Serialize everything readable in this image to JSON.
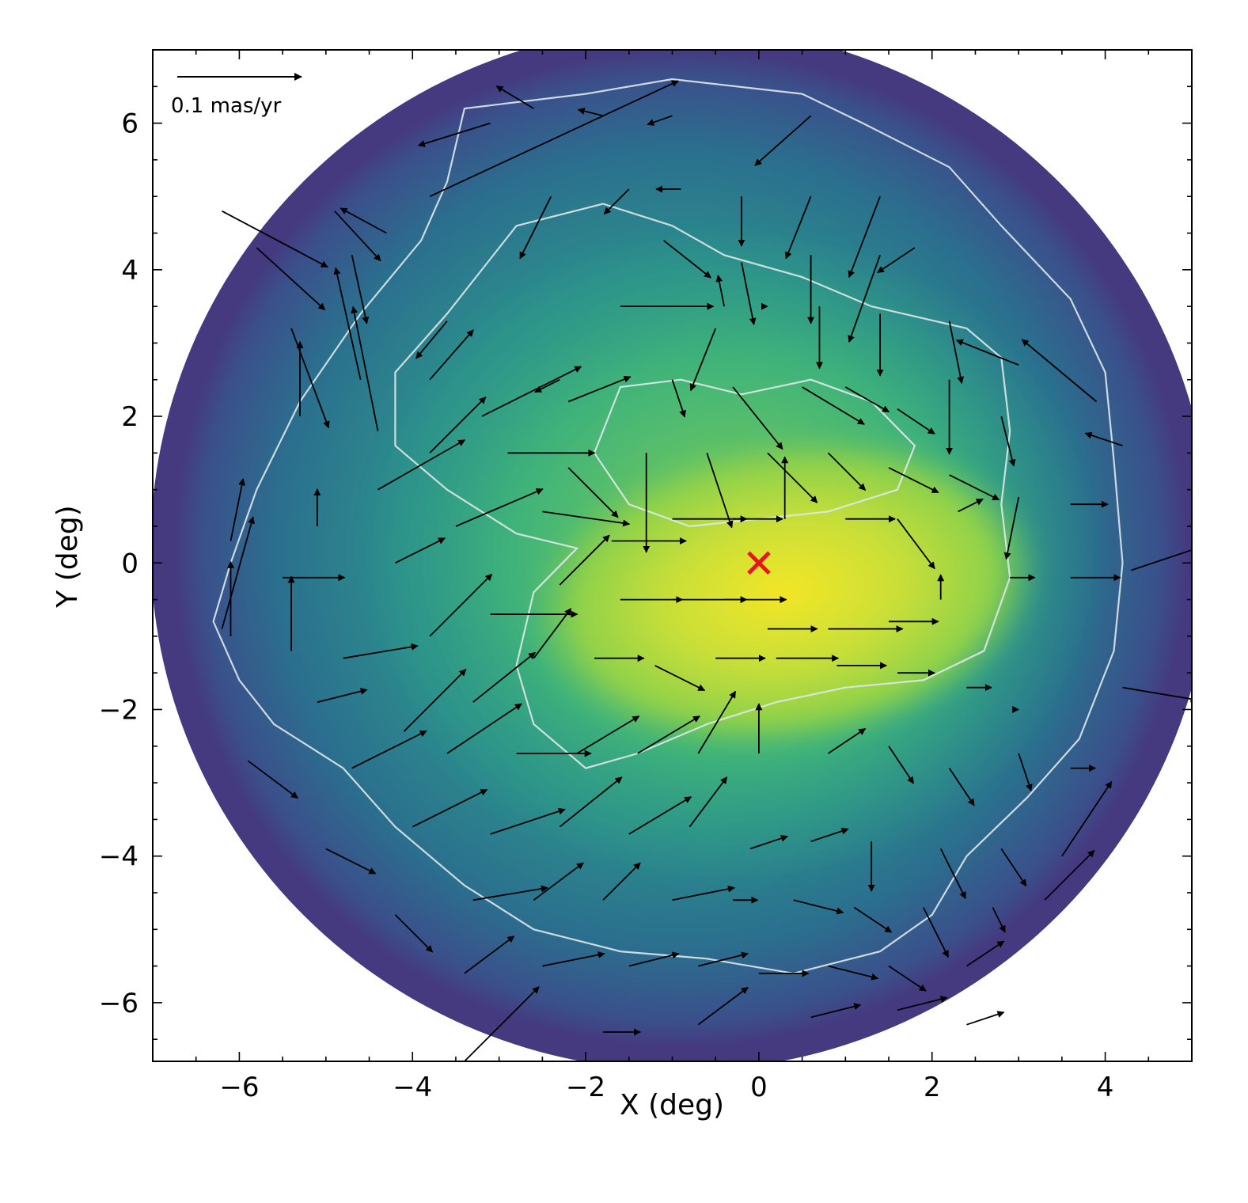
{
  "chart_data": {
    "type": "heatmap",
    "title": "",
    "xlabel": "X (deg)",
    "ylabel": "Y (deg)",
    "xlim": [
      -7.0,
      5.0
    ],
    "ylim": [
      -6.8,
      7.0
    ],
    "x_ticks": [
      -6,
      -4,
      -2,
      0,
      2,
      4
    ],
    "y_ticks": [
      -6,
      -4,
      -2,
      0,
      2,
      4,
      6
    ],
    "x_tick_labels": [
      "−6",
      "−4",
      "−2",
      "0",
      "2",
      "4"
    ],
    "y_tick_labels": [
      "−6",
      "−4",
      "−2",
      "0",
      "2",
      "4",
      "6"
    ],
    "colormap": [
      "#440154",
      "#3b528b",
      "#21918c",
      "#5ec962",
      "#fde725"
    ],
    "density_peak": {
      "x": 0.3,
      "y": -0.4
    },
    "scale_arrow": {
      "label": "0.1 mas/yr",
      "length_mas_yr": 0.1
    },
    "center_marker": {
      "x": 0.0,
      "y": 0.0,
      "color": "#e8141c",
      "symbol": "x"
    },
    "contour_color": "#dde8e8",
    "vectors": [
      [
        -3.1,
        6.0,
        -0.058,
        -0.018
      ],
      [
        -2.6,
        6.2,
        -0.03,
        0.018
      ],
      [
        -1.8,
        6.1,
        -0.02,
        0.005
      ],
      [
        -1.0,
        6.1,
        -0.02,
        -0.007
      ],
      [
        0.6,
        6.1,
        -0.045,
        -0.04
      ],
      [
        -3.8,
        5.0,
        0.2,
        0.093
      ],
      [
        -1.5,
        5.1,
        -0.02,
        -0.02
      ],
      [
        -0.9,
        5.1,
        -0.02,
        0.0
      ],
      [
        -0.2,
        5.0,
        0.0,
        -0.04
      ],
      [
        0.6,
        5.0,
        -0.02,
        -0.05
      ],
      [
        1.4,
        5.0,
        -0.025,
        -0.065
      ],
      [
        -6.2,
        4.8,
        0.085,
        -0.045
      ],
      [
        -5.8,
        4.3,
        0.055,
        -0.05
      ],
      [
        -4.9,
        4.8,
        0.037,
        -0.04
      ],
      [
        -4.3,
        4.5,
        -0.037,
        0.02
      ],
      [
        -4.7,
        4.2,
        0.012,
        -0.055
      ],
      [
        -2.4,
        5.0,
        -0.025,
        -0.05
      ],
      [
        -1.1,
        4.4,
        0.038,
        -0.03
      ],
      [
        -0.4,
        3.5,
        -0.005,
        0.025
      ],
      [
        -0.2,
        4.1,
        0.01,
        -0.05
      ],
      [
        0.6,
        4.2,
        0.0,
        -0.055
      ],
      [
        1.4,
        4.2,
        -0.025,
        -0.07
      ],
      [
        1.8,
        4.3,
        -0.03,
        -0.02
      ],
      [
        -5.4,
        3.2,
        0.03,
        -0.08
      ],
      [
        -4.6,
        2.5,
        -0.02,
        0.09
      ],
      [
        -3.6,
        3.3,
        -0.025,
        -0.03
      ],
      [
        -2.3,
        2.5,
        -0.02,
        -0.01
      ],
      [
        -1.6,
        3.5,
        0.075,
        0.0
      ],
      [
        -0.5,
        3.2,
        -0.02,
        -0.05
      ],
      [
        0.1,
        3.5,
        0.0,
        -0.0
      ],
      [
        0.7,
        3.5,
        0.0,
        -0.05
      ],
      [
        1.4,
        3.4,
        0.0,
        -0.05
      ],
      [
        2.2,
        3.3,
        0.01,
        -0.05
      ],
      [
        -6.2,
        -0.9,
        0.025,
        0.09
      ],
      [
        -5.3,
        2.0,
        0.0,
        0.06
      ],
      [
        -4.4,
        1.8,
        -0.02,
        0.1
      ],
      [
        -3.8,
        2.5,
        0.035,
        0.04
      ],
      [
        -3.2,
        2.0,
        0.08,
        0.04
      ],
      [
        -2.2,
        2.2,
        0.05,
        0.02
      ],
      [
        -1.0,
        2.5,
        0.01,
        -0.03
      ],
      [
        -0.3,
        2.4,
        0.04,
        -0.05
      ],
      [
        0.5,
        2.4,
        0.05,
        -0.03
      ],
      [
        1.0,
        2.4,
        0.035,
        -0.02
      ],
      [
        1.6,
        2.1,
        0.03,
        -0.02
      ],
      [
        2.2,
        2.5,
        0.0,
        -0.06
      ],
      [
        2.8,
        2.0,
        0.01,
        -0.04
      ],
      [
        -5.1,
        0.5,
        0.0,
        0.03
      ],
      [
        -4.4,
        1.0,
        0.07,
        0.04
      ],
      [
        -3.8,
        1.5,
        0.045,
        0.045
      ],
      [
        -2.9,
        1.5,
        0.07,
        0.0
      ],
      [
        -2.2,
        1.3,
        0.04,
        -0.04
      ],
      [
        -1.3,
        1.5,
        0.0,
        -0.08
      ],
      [
        -0.6,
        1.5,
        0.02,
        -0.06
      ],
      [
        0.1,
        1.5,
        0.04,
        -0.04
      ],
      [
        0.8,
        1.5,
        0.03,
        -0.03
      ],
      [
        1.5,
        1.3,
        0.04,
        -0.02
      ],
      [
        2.2,
        1.2,
        0.04,
        -0.02
      ],
      [
        3.0,
        0.9,
        -0.01,
        -0.05
      ],
      [
        3.6,
        0.8,
        0.03,
        0.0
      ],
      [
        -6.1,
        0.3,
        0.01,
        0.05
      ],
      [
        -5.5,
        -0.2,
        0.05,
        0.0
      ],
      [
        -4.2,
        0.0,
        0.04,
        0.02
      ],
      [
        -3.5,
        0.5,
        0.07,
        0.03
      ],
      [
        -2.5,
        0.7,
        0.07,
        -0.01
      ],
      [
        -1.7,
        0.3,
        0.06,
        0.0
      ],
      [
        -1.0,
        0.6,
        0.06,
        0.0
      ],
      [
        -0.3,
        0.6,
        0.04,
        0.0
      ],
      [
        0.3,
        0.6,
        0.0,
        0.05
      ],
      [
        1.0,
        0.6,
        0.04,
        0.0
      ],
      [
        1.6,
        0.6,
        0.03,
        -0.04
      ],
      [
        2.3,
        0.7,
        0.02,
        0.01
      ],
      [
        -6.1,
        -1.0,
        0.0,
        0.06
      ],
      [
        -5.4,
        -1.2,
        0.0,
        0.06
      ],
      [
        -4.8,
        -1.3,
        0.06,
        0.01
      ],
      [
        -3.8,
        -1.0,
        0.05,
        0.05
      ],
      [
        -3.1,
        -0.7,
        0.07,
        0.0
      ],
      [
        -2.3,
        -0.3,
        0.04,
        0.04
      ],
      [
        -1.6,
        -0.5,
        0.05,
        0.0
      ],
      [
        -1.0,
        -0.5,
        0.06,
        0.0
      ],
      [
        -0.4,
        -0.5,
        0.05,
        0.0
      ],
      [
        0.1,
        -0.9,
        0.04,
        0.0
      ],
      [
        0.8,
        -0.9,
        0.06,
        0.0
      ],
      [
        1.5,
        -0.8,
        0.04,
        0.0
      ],
      [
        2.1,
        -0.5,
        0.0,
        0.02
      ],
      [
        2.9,
        -0.2,
        0.02,
        0.0
      ],
      [
        3.6,
        -0.2,
        0.04,
        0.0
      ],
      [
        -5.1,
        -1.9,
        0.04,
        0.01
      ],
      [
        -4.1,
        -2.3,
        0.05,
        0.05
      ],
      [
        -3.3,
        -1.9,
        0.05,
        0.04
      ],
      [
        -2.6,
        -1.3,
        0.03,
        0.04
      ],
      [
        -1.9,
        -1.3,
        0.04,
        0.0
      ],
      [
        -1.2,
        -1.4,
        0.04,
        -0.02
      ],
      [
        -0.5,
        -1.3,
        0.04,
        0.0
      ],
      [
        0.2,
        -1.3,
        0.05,
        0.0
      ],
      [
        0.9,
        -1.4,
        0.04,
        0.0
      ],
      [
        1.6,
        -1.5,
        0.03,
        0.0
      ],
      [
        2.4,
        -1.7,
        0.02,
        0.0
      ],
      [
        3.0,
        -2.0,
        0.0,
        0.0
      ],
      [
        -5.9,
        -2.7,
        0.04,
        -0.03
      ],
      [
        -4.7,
        -2.8,
        0.06,
        0.03
      ],
      [
        -3.6,
        -2.6,
        0.06,
        0.04
      ],
      [
        -2.8,
        -2.6,
        0.06,
        0.0
      ],
      [
        -2.1,
        -2.6,
        0.05,
        0.03
      ],
      [
        -1.4,
        -2.6,
        0.05,
        0.03
      ],
      [
        -0.7,
        -2.6,
        0.03,
        0.05
      ],
      [
        0.0,
        -2.6,
        0.0,
        0.04
      ],
      [
        0.8,
        -2.6,
        0.03,
        0.02
      ],
      [
        1.5,
        -2.5,
        0.02,
        -0.03
      ],
      [
        2.2,
        -2.8,
        0.02,
        -0.03
      ],
      [
        3.0,
        -2.6,
        0.01,
        -0.03
      ],
      [
        3.6,
        -2.8,
        0.02,
        0.0
      ],
      [
        -5.0,
        -3.9,
        0.04,
        -0.02
      ],
      [
        -4.0,
        -3.6,
        0.06,
        0.03
      ],
      [
        -3.1,
        -3.7,
        0.06,
        0.02
      ],
      [
        -2.3,
        -3.6,
        0.05,
        0.04
      ],
      [
        -1.5,
        -3.7,
        0.05,
        0.03
      ],
      [
        -0.8,
        -3.6,
        0.03,
        0.04
      ],
      [
        -0.1,
        -3.9,
        0.03,
        0.01
      ],
      [
        0.6,
        -3.8,
        0.03,
        0.01
      ],
      [
        1.3,
        -3.8,
        0.0,
        -0.04
      ],
      [
        2.1,
        -3.9,
        0.02,
        -0.04
      ],
      [
        2.8,
        -3.9,
        0.02,
        -0.03
      ],
      [
        3.5,
        -4.0,
        0.04,
        0.06
      ],
      [
        -4.2,
        -4.8,
        0.03,
        -0.03
      ],
      [
        -3.3,
        -4.6,
        0.06,
        0.01
      ],
      [
        -2.6,
        -4.6,
        0.04,
        0.03
      ],
      [
        -1.8,
        -4.6,
        0.03,
        0.03
      ],
      [
        -1.0,
        -4.6,
        0.05,
        0.01
      ],
      [
        -0.3,
        -4.6,
        0.02,
        0.0
      ],
      [
        0.4,
        -4.6,
        0.04,
        -0.01
      ],
      [
        1.1,
        -4.7,
        0.03,
        -0.02
      ],
      [
        1.9,
        -4.7,
        0.02,
        -0.04
      ],
      [
        2.7,
        -4.7,
        0.01,
        -0.02
      ],
      [
        3.3,
        -4.6,
        0.04,
        0.04
      ],
      [
        -3.4,
        -5.6,
        0.04,
        0.03
      ],
      [
        -2.5,
        -5.5,
        0.05,
        0.01
      ],
      [
        -1.5,
        -5.5,
        0.04,
        0.01
      ],
      [
        -0.7,
        -5.5,
        0.04,
        0.01
      ],
      [
        0.0,
        -5.6,
        0.04,
        0.0
      ],
      [
        0.8,
        -5.5,
        0.04,
        -0.01
      ],
      [
        1.5,
        -5.5,
        0.03,
        -0.02
      ],
      [
        2.4,
        -5.5,
        0.03,
        0.02
      ],
      [
        -3.4,
        -6.8,
        0.06,
        0.06
      ],
      [
        -1.8,
        -6.4,
        0.03,
        0.0
      ],
      [
        -0.7,
        -6.3,
        0.04,
        0.03
      ],
      [
        0.6,
        -6.2,
        0.04,
        0.01
      ],
      [
        1.6,
        -6.1,
        0.04,
        0.01
      ],
      [
        2.4,
        -6.3,
        0.03,
        0.01
      ],
      [
        4.2,
        -1.7,
        0.06,
        -0.01
      ],
      [
        4.3,
        -0.1,
        0.06,
        0.02
      ],
      [
        4.2,
        1.6,
        -0.03,
        0.01
      ],
      [
        3.9,
        2.2,
        -0.06,
        0.05
      ],
      [
        3.0,
        2.7,
        -0.05,
        0.02
      ]
    ]
  }
}
